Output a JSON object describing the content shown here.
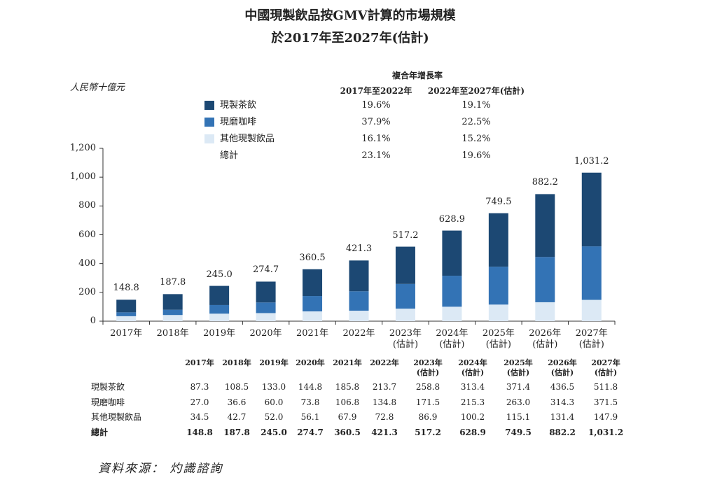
{
  "chart_data": {
    "type": "stacked_bar",
    "title": "中國現製飲品按GMV計算的市場規模",
    "subtitle": "於2017年至2027年(估計)",
    "y_label": "人民幣十億元",
    "categories": [
      "2017年",
      "2018年",
      "2019年",
      "2020年",
      "2021年",
      "2022年",
      "2023年\n(估計)",
      "2024年\n(估計)",
      "2025年\n(估計)",
      "2026年\n(估計)",
      "2027年\n(估計)"
    ],
    "series": [
      {
        "name": "現製茶飲",
        "color": "#1c4873",
        "values": [
          87.3,
          108.5,
          133.0,
          144.8,
          185.8,
          213.7,
          258.8,
          313.4,
          371.4,
          436.5,
          511.8
        ]
      },
      {
        "name": "現磨咖啡",
        "color": "#3373b5",
        "values": [
          27.0,
          36.6,
          60.0,
          73.8,
          106.8,
          134.8,
          171.5,
          215.3,
          263.0,
          314.3,
          371.5
        ]
      },
      {
        "name": "其他現製飲品",
        "color": "#dce9f5",
        "values": [
          34.5,
          42.7,
          52.0,
          56.1,
          67.9,
          72.8,
          86.9,
          100.2,
          115.1,
          131.4,
          147.9
        ]
      }
    ],
    "totals": [
      148.8,
      187.8,
      245.0,
      274.7,
      360.5,
      421.3,
      517.2,
      628.9,
      749.5,
      882.2,
      1031.2
    ],
    "total_labels": [
      "148.8",
      "187.8",
      "245.0",
      "274.7",
      "360.5",
      "421.3",
      "517.2",
      "628.9",
      "749.5",
      "882.2",
      "1,031.2"
    ],
    "ylim": [
      0,
      1200
    ],
    "yticks": [
      0,
      200,
      400,
      600,
      800,
      {
        "value": 1000,
        "label": "1,000"
      },
      {
        "value": 1200,
        "label": "1,200"
      }
    ],
    "cagr": {
      "title": "複合年增長率",
      "columns": [
        "2017年至2022年",
        "2022年至2027年(估計)"
      ],
      "rows": [
        [
          "19.6%",
          "19.1%"
        ],
        [
          "37.9%",
          "22.5%"
        ],
        [
          "16.1%",
          "15.2%"
        ]
      ],
      "total_name": "總計",
      "total": [
        "23.1%",
        "19.6%"
      ]
    }
  },
  "table": {
    "columns": [
      "2017年",
      "2018年",
      "2019年",
      "2020年",
      "2021年",
      "2022年",
      "2023年\n(估計)",
      "2024年\n(估計)",
      "2025年\n(估計)",
      "2026年\n(估計)",
      "2027年\n(估計)"
    ],
    "rows": [
      [
        "現製茶飲",
        "87.3",
        "108.5",
        "133.0",
        "144.8",
        "185.8",
        "213.7",
        "258.8",
        "313.4",
        "371.4",
        "436.5",
        "511.8"
      ],
      [
        "現磨咖啡",
        "27.0",
        "36.6",
        "60.0",
        "73.8",
        "106.8",
        "134.8",
        "171.5",
        "215.3",
        "263.0",
        "314.3",
        "371.5"
      ],
      [
        "其他現製飲品",
        "34.5",
        "42.7",
        "52.0",
        "56.1",
        "67.9",
        "72.8",
        "86.9",
        "100.2",
        "115.1",
        "131.4",
        "147.9"
      ],
      [
        "總計",
        "148.8",
        "187.8",
        "245.0",
        "274.7",
        "360.5",
        "421.3",
        "517.2",
        "628.9",
        "749.5",
        "882.2",
        "1,031.2"
      ]
    ]
  },
  "source": "資料來源： 灼識諮詢"
}
